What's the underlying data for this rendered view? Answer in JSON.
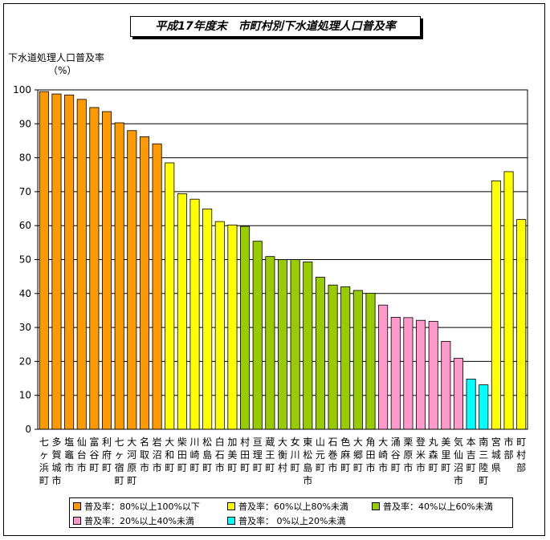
{
  "title": "平成17年度末　市町村別下水道処理人口普及率",
  "chart_data": {
    "type": "bar",
    "ylabel": "下水道処理人口普及率",
    "yunit": "（%）",
    "ylim": [
      0,
      100
    ],
    "yticks": [
      0,
      10,
      20,
      30,
      40,
      50,
      60,
      70,
      80,
      90,
      100
    ],
    "grid": true,
    "categories": [
      "七ヶ浜町",
      "多賀城市",
      "塩竈市",
      "仙台市",
      "富谷町",
      "利府町",
      "七ヶ宿町",
      "大河原町",
      "名取市",
      "岩沼市",
      "大和町",
      "柴田町",
      "川崎町",
      "松島町",
      "白石市",
      "加美町",
      "村田町",
      "亘理町",
      "蔵王町",
      "大衡村",
      "女川町",
      "東松島市",
      "山元町",
      "石巻市",
      "色麻町",
      "大郷町",
      "角田市",
      "大崎市",
      "涌谷町",
      "栗原市",
      "登米市",
      "丸森町",
      "美里町",
      "気仙沼市",
      "本吉町",
      "南三陸町",
      "宮城県",
      "市部",
      "町村部"
    ],
    "values": [
      99.5,
      98.8,
      98.5,
      97.2,
      94.8,
      93.6,
      90.3,
      88.0,
      86.2,
      84.1,
      78.5,
      69.4,
      67.8,
      64.9,
      61.2,
      60.2,
      59.8,
      55.4,
      50.9,
      50.0,
      50.0,
      49.3,
      44.8,
      42.5,
      42.0,
      40.9,
      40.1,
      36.6,
      33.0,
      32.9,
      32.1,
      31.8,
      25.9,
      20.9,
      14.8,
      13.1,
      73.2,
      75.9,
      61.8
    ],
    "groups": [
      0,
      0,
      0,
      0,
      0,
      0,
      0,
      0,
      0,
      0,
      1,
      1,
      1,
      1,
      1,
      1,
      2,
      2,
      2,
      2,
      2,
      2,
      2,
      2,
      2,
      2,
      2,
      3,
      3,
      3,
      3,
      3,
      3,
      3,
      4,
      4,
      1,
      1,
      1
    ],
    "legend": [
      {
        "label": "普及率：80%以上100%以下",
        "color": "#ff9900"
      },
      {
        "label": "普及率：60%以上80%未満",
        "color": "#ffff00"
      },
      {
        "label": "普及率：40%以上60%未満",
        "color": "#99cc00"
      },
      {
        "label": "普及率：20%以上40%未満",
        "color": "#ff99cc"
      },
      {
        "label": "普及率：  0%以上20%未満",
        "color": "#00ffff"
      }
    ]
  }
}
